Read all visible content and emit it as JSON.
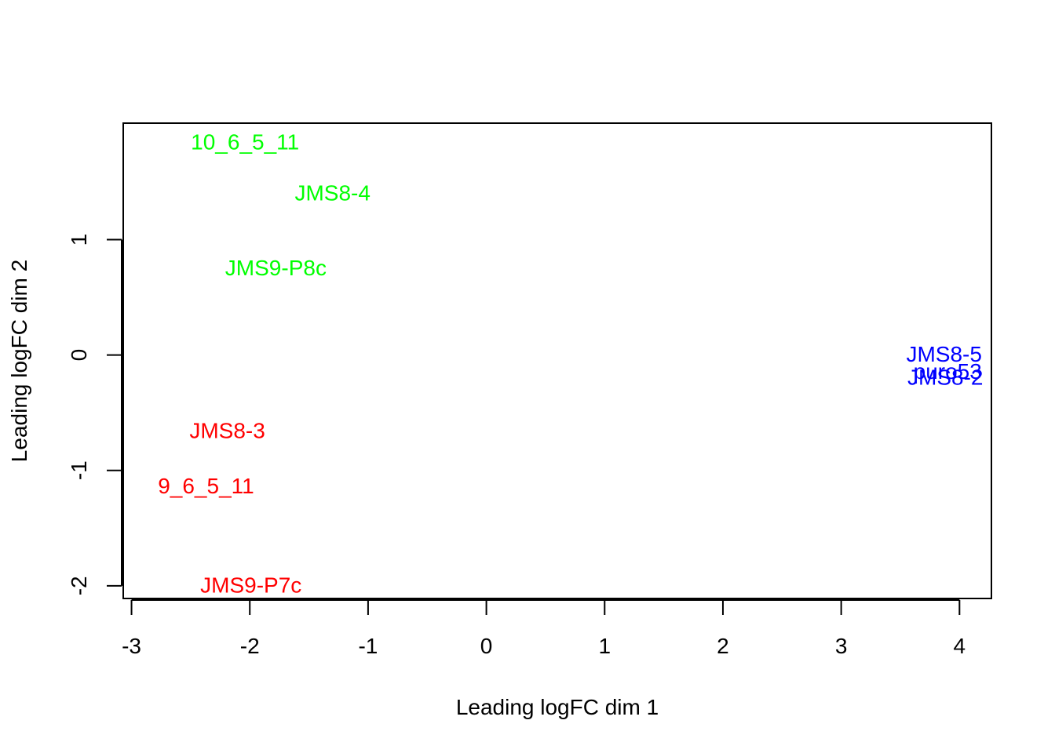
{
  "chart_data": {
    "type": "scatter",
    "title": "",
    "xlabel": "Leading logFC dim 1",
    "ylabel": "Leading logFC dim 2",
    "xlim": [
      -3.07,
      4.27
    ],
    "ylim": [
      -2.11,
      2.01
    ],
    "x_ticks": [
      -3,
      -2,
      -1,
      0,
      1,
      2,
      3,
      4
    ],
    "y_ticks": [
      -2,
      -1,
      0,
      1
    ],
    "x_tick_labels": [
      "-3",
      "-2",
      "-1",
      "0",
      "1",
      "2",
      "3",
      "4"
    ],
    "y_tick_labels": [
      "-2",
      "-1",
      "0",
      "1"
    ],
    "grid": false,
    "legend": "none",
    "colors": {
      "green": "#00FF00",
      "red": "#FF0000",
      "blue": "#0000FF"
    },
    "points": [
      {
        "label": "10_6_5_11",
        "x": -2.04,
        "y": 1.85,
        "color": "#00FF00"
      },
      {
        "label": "JMS8-4",
        "x": -1.3,
        "y": 1.41,
        "color": "#00FF00"
      },
      {
        "label": "JMS9-P8c",
        "x": -1.78,
        "y": 0.76,
        "color": "#00FF00"
      },
      {
        "label": "JMS8-3",
        "x": -2.19,
        "y": -0.65,
        "color": "#FF0000"
      },
      {
        "label": "9_6_5_11",
        "x": -2.37,
        "y": -1.13,
        "color": "#FF0000"
      },
      {
        "label": "JMS9-P7c",
        "x": -1.99,
        "y": -1.99,
        "color": "#FF0000"
      },
      {
        "label": "JMS8-5",
        "x": 3.87,
        "y": 0.01,
        "color": "#0000FF"
      },
      {
        "label": "puro53",
        "x": 3.9,
        "y": -0.14,
        "color": "#0000FF"
      },
      {
        "label": "JMS8-2",
        "x": 3.88,
        "y": -0.19,
        "color": "#0000FF"
      }
    ]
  }
}
